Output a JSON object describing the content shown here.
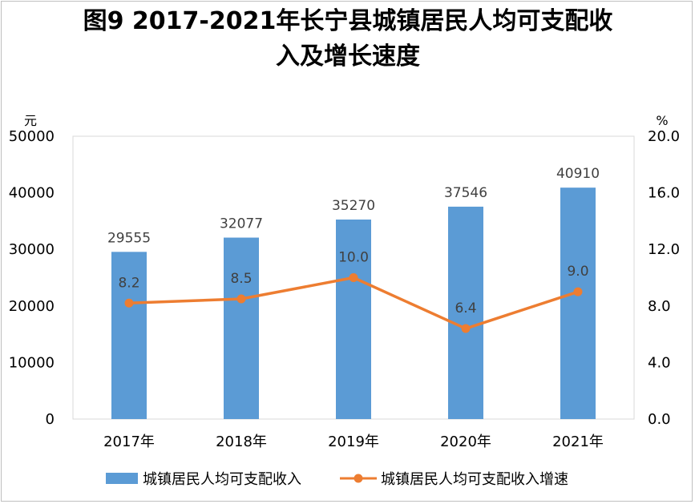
{
  "chart_data": {
    "type": "bar",
    "title_line1": "图9  2017-2021年长宁县城镇居民人均可支配收",
    "title_line2": "入及增长速度",
    "categories": [
      "2017年",
      "2018年",
      "2019年",
      "2020年",
      "2021年"
    ],
    "y_left": {
      "unit": "元",
      "range": [
        0,
        50000
      ],
      "ticks": [
        0,
        10000,
        20000,
        30000,
        40000,
        50000
      ],
      "tick_labels": [
        "0",
        "10000",
        "20000",
        "30000",
        "40000",
        "50000"
      ]
    },
    "y_right": {
      "unit": "%",
      "range": [
        0,
        20
      ],
      "ticks": [
        0,
        4,
        8,
        12,
        16,
        20
      ],
      "tick_labels": [
        "0.0",
        "4.0",
        "8.0",
        "12.0",
        "16.0",
        "20.0"
      ]
    },
    "series": [
      {
        "name": "城镇居民人均可支配收入",
        "type": "bar",
        "axis": "left",
        "color": "#5b9bd5",
        "values": [
          29555,
          32077,
          35270,
          37546,
          40910
        ],
        "labels": [
          "29555",
          "32077",
          "35270",
          "37546",
          "40910"
        ]
      },
      {
        "name": "城镇居民人均可支配收入增速",
        "type": "line",
        "axis": "right",
        "color": "#ed7d31",
        "values": [
          8.2,
          8.5,
          10.0,
          6.4,
          9.0
        ],
        "labels": [
          "8.2",
          "8.5",
          "10.0",
          "6.4",
          "9.0"
        ]
      }
    ],
    "grid": false,
    "legend_position": "bottom"
  }
}
